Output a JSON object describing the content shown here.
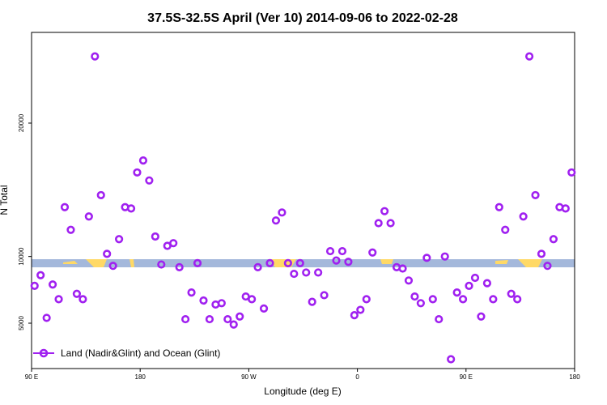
{
  "chart_data": {
    "type": "scatter",
    "title": "37.5S-32.5S April (Ver 10)   2014-09-06 to 2022-02-28",
    "xlabel": "Longitude (deg E)",
    "ylabel": "N Total",
    "xlim": [
      90,
      540
    ],
    "ylim": [
      1600,
      26800
    ],
    "x_ticks": [
      {
        "value": 90,
        "label": "90 E"
      },
      {
        "value": 180,
        "label": "180"
      },
      {
        "value": 270,
        "label": "90 W"
      },
      {
        "value": 360,
        "label": "0"
      },
      {
        "value": 450,
        "label": "90 E"
      },
      {
        "value": 540,
        "label": "180"
      }
    ],
    "y_ticks": [
      {
        "value": 5000,
        "label": "5000"
      },
      {
        "value": 10000,
        "label": "10000"
      },
      {
        "value": 20000,
        "label": "20000"
      }
    ],
    "grid": false,
    "legend_position": "bottom-left",
    "colors": {
      "series": "#a020f0",
      "land": "#ffd966",
      "ocean": "#a4b8db"
    },
    "series": [
      {
        "name": "Land (Nadir&Glint) and Ocean (Glint)",
        "marker": "open-circle",
        "points": [
          [
            92.5,
            7800
          ],
          [
            97.5,
            8600
          ],
          [
            102.5,
            5400
          ],
          [
            107.5,
            7900
          ],
          [
            112.5,
            6800
          ],
          [
            117.5,
            13700
          ],
          [
            122.5,
            12000
          ],
          [
            127.5,
            7200
          ],
          [
            132.5,
            6800
          ],
          [
            137.5,
            13000
          ],
          [
            142.5,
            25000
          ],
          [
            147.5,
            14600
          ],
          [
            152.5,
            10200
          ],
          [
            157.5,
            9300
          ],
          [
            162.5,
            11300
          ],
          [
            167.5,
            13700
          ],
          [
            172.5,
            13600
          ],
          [
            177.5,
            16300
          ],
          [
            182.5,
            17200
          ],
          [
            187.5,
            15700
          ],
          [
            192.5,
            11500
          ],
          [
            197.5,
            9400
          ],
          [
            202.5,
            10800
          ],
          [
            207.5,
            11000
          ],
          [
            212.5,
            9200
          ],
          [
            217.5,
            5300
          ],
          [
            222.5,
            7300
          ],
          [
            227.5,
            9500
          ],
          [
            232.5,
            6700
          ],
          [
            237.5,
            5300
          ],
          [
            242.5,
            6400
          ],
          [
            247.5,
            6500
          ],
          [
            252.5,
            5300
          ],
          [
            257.5,
            4900
          ],
          [
            262.5,
            5500
          ],
          [
            267.5,
            7000
          ],
          [
            272.5,
            6800
          ],
          [
            277.5,
            9200
          ],
          [
            282.5,
            6100
          ],
          [
            287.5,
            9500
          ],
          [
            292.5,
            12700
          ],
          [
            297.5,
            13300
          ],
          [
            302.5,
            9500
          ],
          [
            307.5,
            8700
          ],
          [
            312.5,
            9500
          ],
          [
            317.5,
            8800
          ],
          [
            322.5,
            6600
          ],
          [
            327.5,
            8800
          ],
          [
            332.5,
            7100
          ],
          [
            337.5,
            10400
          ],
          [
            342.5,
            9700
          ],
          [
            347.5,
            10400
          ],
          [
            352.5,
            9600
          ],
          [
            357.5,
            5600
          ],
          [
            362.5,
            6000
          ],
          [
            367.5,
            6800
          ],
          [
            372.5,
            10300
          ],
          [
            377.5,
            12500
          ],
          [
            382.5,
            13400
          ],
          [
            387.5,
            12500
          ],
          [
            392.5,
            9200
          ],
          [
            397.5,
            9100
          ],
          [
            402.5,
            8200
          ],
          [
            407.5,
            7000
          ],
          [
            412.5,
            6500
          ],
          [
            417.5,
            9900
          ],
          [
            422.5,
            6800
          ],
          [
            427.5,
            5300
          ],
          [
            432.5,
            10000
          ],
          [
            437.5,
            2300
          ],
          [
            442.5,
            7300
          ],
          [
            447.5,
            6800
          ],
          [
            452.5,
            7800
          ],
          [
            457.5,
            8400
          ],
          [
            462.5,
            5500
          ],
          [
            467.5,
            8000
          ],
          [
            472.5,
            6800
          ],
          [
            477.5,
            13700
          ],
          [
            482.5,
            12000
          ],
          [
            487.5,
            7200
          ],
          [
            492.5,
            6800
          ],
          [
            497.5,
            13000
          ],
          [
            502.5,
            25000
          ],
          [
            507.5,
            14600
          ],
          [
            512.5,
            10200
          ],
          [
            517.5,
            9300
          ],
          [
            522.5,
            11300
          ],
          [
            527.5,
            13700
          ],
          [
            532.5,
            13600
          ],
          [
            537.5,
            16300
          ]
        ]
      }
    ]
  }
}
